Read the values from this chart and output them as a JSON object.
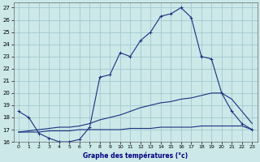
{
  "title": "Graphe des températures (°c)",
  "bg_color": "#cce8e8",
  "grid_color": "#99c4cc",
  "line_color": "#1a3080",
  "xlim": [
    -0.5,
    23.5
  ],
  "ylim": [
    16,
    27.4
  ],
  "xticks": [
    0,
    1,
    2,
    3,
    4,
    5,
    6,
    7,
    8,
    9,
    10,
    11,
    12,
    13,
    14,
    15,
    16,
    17,
    18,
    19,
    20,
    21,
    22,
    23
  ],
  "yticks": [
    16,
    17,
    18,
    19,
    20,
    21,
    22,
    23,
    24,
    25,
    26,
    27
  ],
  "curve1_x": [
    0,
    1,
    2,
    3,
    4,
    5,
    6,
    7,
    8,
    9,
    10,
    11,
    12,
    13,
    14,
    15,
    16,
    17,
    18
  ],
  "curve1_y": [
    18.5,
    18.0,
    16.7,
    16.3,
    16.0,
    16.0,
    16.2,
    17.2,
    21.3,
    21.5,
    23.3,
    23.0,
    24.3,
    25.0,
    26.3,
    26.5,
    27.0,
    26.2,
    23.0
  ],
  "curve2_x": [
    0,
    1,
    2,
    3,
    4,
    5,
    6,
    7,
    8,
    9,
    10,
    11,
    12,
    13,
    14,
    15,
    16,
    17,
    18,
    19,
    20,
    21,
    22,
    23
  ],
  "curve2_y": [
    16.8,
    16.8,
    16.8,
    16.9,
    16.9,
    16.9,
    17.0,
    17.0,
    17.0,
    17.0,
    17.0,
    17.1,
    17.1,
    17.1,
    17.2,
    17.2,
    17.2,
    17.2,
    17.3,
    17.3,
    17.3,
    17.3,
    17.3,
    17.0
  ],
  "curve3_x": [
    0,
    1,
    2,
    3,
    4,
    5,
    6,
    7,
    8,
    9,
    10,
    11,
    12,
    13,
    14,
    15,
    16,
    17,
    18,
    19,
    20,
    21,
    22,
    23
  ],
  "curve3_y": [
    16.8,
    16.9,
    17.0,
    17.1,
    17.2,
    17.2,
    17.3,
    17.5,
    17.8,
    18.0,
    18.2,
    18.5,
    18.8,
    19.0,
    19.2,
    19.3,
    19.5,
    19.6,
    19.8,
    20.0,
    20.0,
    19.5,
    18.5,
    17.5
  ],
  "curve4_x": [
    18,
    19,
    20,
    21,
    22,
    23
  ],
  "curve4_y": [
    23.0,
    22.8,
    20.0,
    18.5,
    17.5,
    17.0
  ]
}
